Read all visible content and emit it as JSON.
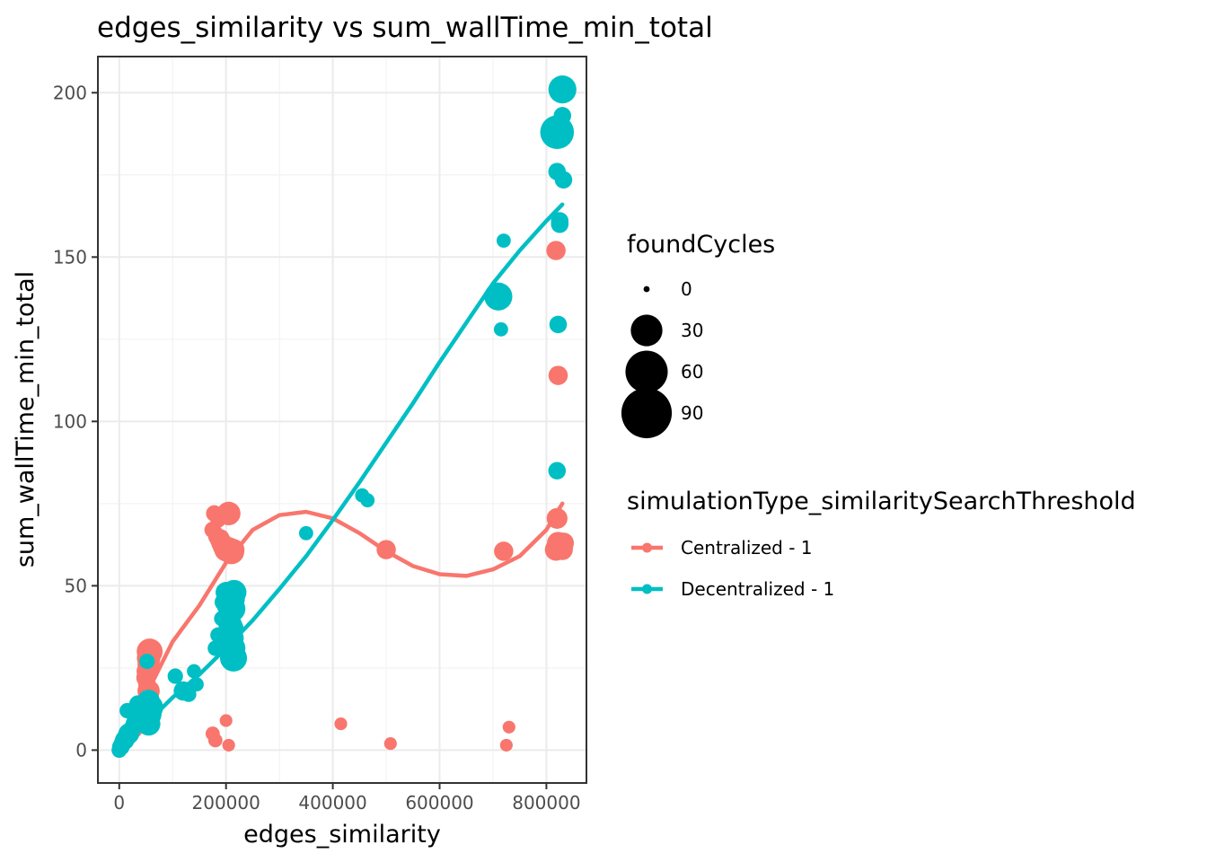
{
  "chart_data": {
    "type": "scatter",
    "title": "edges_similarity  vs  sum_wallTime_min_total",
    "xlabel": "edges_similarity",
    "ylabel": "sum_wallTime_min_total",
    "xlim": [
      -40000,
      875000
    ],
    "ylim": [
      -10,
      211
    ],
    "x_ticks": [
      0,
      200000,
      400000,
      600000,
      800000
    ],
    "x_tick_labels": [
      "0",
      "200000",
      "400000",
      "600000",
      "800000"
    ],
    "y_ticks": [
      0,
      50,
      100,
      150,
      200
    ],
    "y_tick_labels": [
      "0",
      "50",
      "100",
      "150",
      "200"
    ],
    "grid": true,
    "size_legend": {
      "title": "foundCycles",
      "entries": [
        {
          "label": "0",
          "value": 0
        },
        {
          "label": "30",
          "value": 30
        },
        {
          "label": "60",
          "value": 60
        },
        {
          "label": "90",
          "value": 90
        }
      ]
    },
    "color_legend": {
      "title": "simulationType_similaritySearchThreshold",
      "placement": "right"
    },
    "series": [
      {
        "name": "Centralized - 1",
        "color": "#f8766d",
        "points": [
          [
            500,
            0,
            2
          ],
          [
            2000,
            1,
            3
          ],
          [
            5000,
            2,
            4
          ],
          [
            10000,
            3,
            5
          ],
          [
            15000,
            4,
            4
          ],
          [
            20000,
            5,
            6
          ],
          [
            30000,
            6,
            3
          ],
          [
            40000,
            8,
            5
          ],
          [
            48000,
            12,
            6
          ],
          [
            52000,
            14,
            8
          ],
          [
            55000,
            16,
            10
          ],
          [
            55000,
            18,
            12
          ],
          [
            52000,
            20,
            6
          ],
          [
            50000,
            22,
            8
          ],
          [
            52000,
            24,
            10
          ],
          [
            55000,
            26,
            12
          ],
          [
            55000,
            28,
            14
          ],
          [
            57000,
            30,
            18
          ],
          [
            175000,
            67,
            5
          ],
          [
            178000,
            72,
            5
          ],
          [
            185000,
            70,
            4
          ],
          [
            180000,
            66,
            4
          ],
          [
            183000,
            65,
            6
          ],
          [
            188000,
            64,
            8
          ],
          [
            192000,
            63,
            10
          ],
          [
            196000,
            62,
            12
          ],
          [
            200000,
            61,
            14
          ],
          [
            205000,
            61,
            16
          ],
          [
            210000,
            60.5,
            18
          ],
          [
            215000,
            61,
            10
          ],
          [
            205000,
            72,
            14
          ],
          [
            190000,
            64.5,
            6
          ],
          [
            175000,
            5,
            3
          ],
          [
            180000,
            3,
            3
          ],
          [
            200000,
            9,
            2
          ],
          [
            205000,
            1.5,
            2
          ],
          [
            415000,
            8,
            2
          ],
          [
            500000,
            61,
            8
          ],
          [
            508000,
            2,
            2
          ],
          [
            720000,
            60.5,
            8
          ],
          [
            725000,
            1.5,
            2
          ],
          [
            730000,
            7,
            2
          ],
          [
            818000,
            152,
            8
          ],
          [
            822000,
            114,
            8
          ],
          [
            820000,
            70.5,
            10
          ],
          [
            822000,
            63,
            12
          ],
          [
            818000,
            61,
            12
          ],
          [
            828000,
            62,
            14
          ],
          [
            832000,
            63,
            10
          ],
          [
            830000,
            61,
            10
          ]
        ],
        "fit": [
          [
            0,
            1
          ],
          [
            30000,
            10
          ],
          [
            60000,
            20
          ],
          [
            100000,
            33
          ],
          [
            150000,
            44
          ],
          [
            200000,
            57
          ],
          [
            250000,
            67
          ],
          [
            300000,
            71.5
          ],
          [
            350000,
            72.5
          ],
          [
            400000,
            70.5
          ],
          [
            450000,
            66
          ],
          [
            500000,
            60.5
          ],
          [
            550000,
            56
          ],
          [
            600000,
            53.5
          ],
          [
            650000,
            53
          ],
          [
            700000,
            55
          ],
          [
            750000,
            59
          ],
          [
            800000,
            67
          ],
          [
            830000,
            75
          ]
        ]
      },
      {
        "name": "Decentralized - 1",
        "color": "#00bfc4",
        "points": [
          [
            0,
            0,
            4
          ],
          [
            3000,
            1,
            6
          ],
          [
            6000,
            2,
            6
          ],
          [
            10000,
            3,
            8
          ],
          [
            14000,
            4,
            8
          ],
          [
            18000,
            5,
            10
          ],
          [
            22000,
            6,
            6
          ],
          [
            26000,
            7,
            6
          ],
          [
            30000,
            8,
            8
          ],
          [
            15000,
            12,
            4
          ],
          [
            35000,
            14,
            6
          ],
          [
            45000,
            10,
            10
          ],
          [
            50000,
            9,
            12
          ],
          [
            55000,
            8,
            14
          ],
          [
            55000,
            11,
            18
          ],
          [
            58000,
            13,
            18
          ],
          [
            55000,
            15,
            12
          ],
          [
            52000,
            27,
            4
          ],
          [
            105000,
            22.5,
            4
          ],
          [
            120000,
            18,
            8
          ],
          [
            130000,
            17,
            4
          ],
          [
            140000,
            24,
            3
          ],
          [
            145000,
            20,
            3
          ],
          [
            180000,
            31,
            4
          ],
          [
            185000,
            35,
            4
          ],
          [
            192000,
            40,
            4
          ],
          [
            195000,
            45,
            6
          ],
          [
            200000,
            48,
            10
          ],
          [
            205000,
            44,
            14
          ],
          [
            210000,
            46,
            20
          ],
          [
            212000,
            43,
            18
          ],
          [
            208000,
            38,
            14
          ],
          [
            210000,
            34,
            16
          ],
          [
            212000,
            31,
            18
          ],
          [
            214000,
            28,
            20
          ],
          [
            210000,
            30,
            14
          ],
          [
            212000,
            37,
            12
          ],
          [
            215000,
            48,
            16
          ],
          [
            350000,
            66,
            3
          ],
          [
            455000,
            77.5,
            3
          ],
          [
            465000,
            76,
            3
          ],
          [
            710000,
            138,
            22
          ],
          [
            715000,
            128,
            3
          ],
          [
            720000,
            155,
            3
          ],
          [
            820000,
            85,
            6
          ],
          [
            822000,
            129.5,
            6
          ],
          [
            825000,
            160,
            6
          ],
          [
            825000,
            161,
            6
          ],
          [
            820000,
            176,
            6
          ],
          [
            832000,
            173.5,
            6
          ],
          [
            830000,
            193,
            6
          ],
          [
            820000,
            188,
            35
          ],
          [
            830000,
            201,
            22
          ]
        ],
        "fit": [
          [
            0,
            0
          ],
          [
            50000,
            8
          ],
          [
            100000,
            16
          ],
          [
            150000,
            23
          ],
          [
            200000,
            31
          ],
          [
            250000,
            39.5
          ],
          [
            300000,
            49
          ],
          [
            350000,
            59
          ],
          [
            400000,
            70
          ],
          [
            450000,
            81.5
          ],
          [
            500000,
            93.5
          ],
          [
            550000,
            105.5
          ],
          [
            600000,
            118
          ],
          [
            650000,
            130
          ],
          [
            700000,
            142
          ],
          [
            750000,
            152
          ],
          [
            800000,
            161
          ],
          [
            830000,
            166
          ]
        ]
      }
    ]
  }
}
